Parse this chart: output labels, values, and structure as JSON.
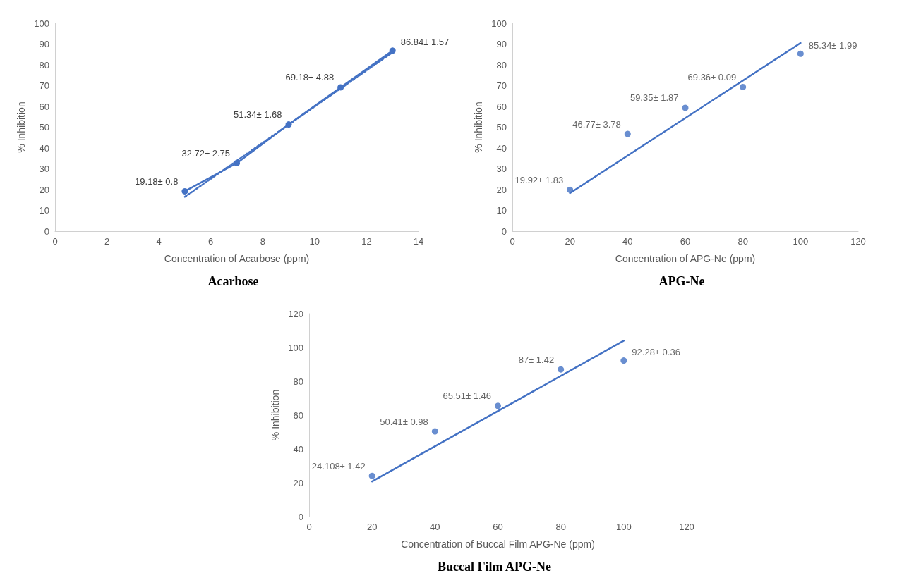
{
  "chart_data": [
    {
      "type": "line",
      "title": "Acarbose",
      "xlabel": "Concentration of Acarbose (ppm)",
      "ylabel": "% Inhibition",
      "xlim": [
        0,
        14
      ],
      "xticks": [
        0,
        2,
        4,
        6,
        8,
        10,
        12,
        14
      ],
      "ylim": [
        0,
        100
      ],
      "yticks": [
        0,
        10,
        20,
        30,
        40,
        50,
        60,
        70,
        80,
        90,
        100
      ],
      "grid": false,
      "series": [
        {
          "marker": "circle",
          "line_style": "solid",
          "color": "#4472c4",
          "x": [
            5,
            7,
            9,
            11,
            13
          ],
          "values": [
            19.18,
            32.72,
            51.34,
            69.18,
            86.84
          ],
          "value_labels": [
            "19.18± 0.8",
            "32.72± 2.75",
            "51.34± 1.68",
            "69.18± 4.88",
            "86.84± 1.57"
          ]
        },
        {
          "type": "line",
          "marker": "none",
          "line_style": "dotted",
          "color": "#4472c4",
          "x": [
            5,
            13
          ],
          "values": [
            16.5,
            86
          ]
        }
      ]
    },
    {
      "type": "scatter",
      "title": "APG-Ne",
      "xlabel": "Concentration of APG-Ne (ppm)",
      "ylabel": "% Inhibition",
      "xlim": [
        0,
        120
      ],
      "xticks": [
        0,
        20,
        40,
        60,
        80,
        100,
        120
      ],
      "ylim": [
        0,
        100
      ],
      "yticks": [
        0,
        10,
        20,
        30,
        40,
        50,
        60,
        70,
        80,
        90,
        100
      ],
      "grid": false,
      "series": [
        {
          "marker": "circle",
          "color": "#4472c4",
          "x": [
            20,
            40,
            60,
            80,
            100
          ],
          "values": [
            19.92,
            46.77,
            59.35,
            69.36,
            85.34
          ],
          "value_labels": [
            "19.92± 1.83",
            "46.77± 3.78",
            "59.35± 1.87",
            "69.36± 0.09",
            "85.34± 1.99"
          ]
        },
        {
          "type": "line",
          "marker": "none",
          "line_style": "solid",
          "color": "#4472c4",
          "x": [
            20,
            100
          ],
          "values": [
            18.3,
            90.5
          ]
        }
      ]
    },
    {
      "type": "scatter",
      "title": "Buccal Film APG-Ne",
      "xlabel": "Concentration of Buccal Film APG-Ne (ppm)",
      "ylabel": "% Inhibition",
      "xlim": [
        0,
        120
      ],
      "xticks": [
        0,
        20,
        40,
        60,
        80,
        100,
        120
      ],
      "ylim": [
        0,
        120
      ],
      "yticks": [
        0,
        20,
        40,
        60,
        80,
        100,
        120
      ],
      "grid": false,
      "series": [
        {
          "marker": "circle",
          "color": "#4472c4",
          "x": [
            20,
            40,
            60,
            80,
            100
          ],
          "values": [
            24.108,
            50.41,
            65.51,
            87,
            92.28
          ],
          "value_labels": [
            "24.108± 1.42",
            "50.41± 0.98",
            "65.51± 1.46",
            "87± 1.42",
            "92.28± 0.36"
          ]
        },
        {
          "type": "line",
          "marker": "none",
          "line_style": "solid",
          "color": "#4472c4",
          "x": [
            20,
            100
          ],
          "values": [
            20.8,
            104
          ]
        }
      ]
    }
  ]
}
